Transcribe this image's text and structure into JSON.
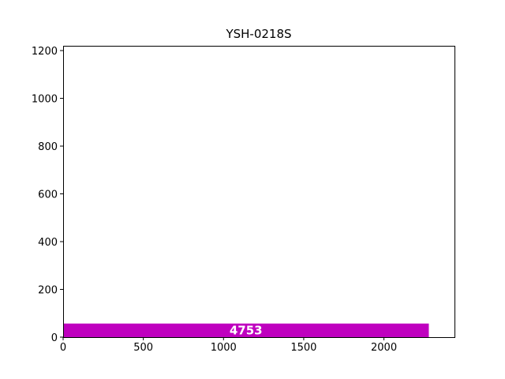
{
  "chart_data": {
    "type": "bar",
    "orientation": "horizontal",
    "title": "YSH-0218S",
    "xlabel": "",
    "ylabel": "",
    "xlim": [
      0,
      2440
    ],
    "ylim": [
      0,
      1220
    ],
    "x_ticks": [
      0,
      500,
      1000,
      1500,
      2000
    ],
    "y_ticks": [
      0,
      200,
      400,
      600,
      800,
      1000,
      1200
    ],
    "bars": [
      {
        "x_start": 0,
        "x_end": 2280,
        "y_start": 0,
        "y_end": 57,
        "label": "4753"
      }
    ],
    "grid": false,
    "legend": "none",
    "colors": {
      "bar": "#bf00bf",
      "bar_label": "#ffffff",
      "axes": "#000000"
    }
  }
}
